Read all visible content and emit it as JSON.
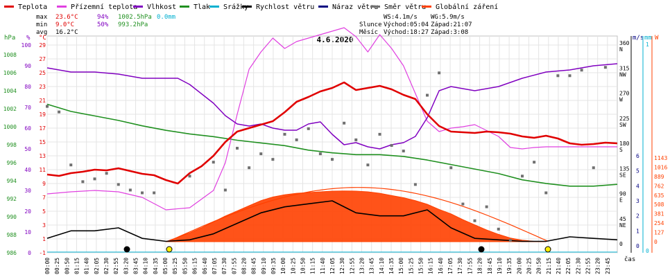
{
  "chart_data": {
    "type": "line",
    "title": "4.6.2020",
    "legend": [
      {
        "label": "Teplota",
        "color": "#e00000"
      },
      {
        "label": "Přízemní teplota",
        "color": "#e040e0"
      },
      {
        "label": "Vlhkost",
        "color": "#8000c0"
      },
      {
        "label": "Tlak",
        "color": "#209020"
      },
      {
        "label": "Srážky",
        "color": "#00b0d0"
      },
      {
        "label": "Rychlost větru",
        "color": "#000000"
      },
      {
        "label": "Náraz větru",
        "color": "#000080"
      },
      {
        "label": "Směr větru",
        "color": "#707070"
      },
      {
        "label": "Globální záření",
        "color": "#ff4000"
      }
    ],
    "stats": {
      "max": {
        "label": "max",
        "temp": "23.6°C",
        "hum": "94%",
        "press": "1002.5hPa",
        "rain": "0.0mm"
      },
      "min": {
        "label": "min",
        "temp": "9.0°C",
        "hum": "50%",
        "press": "993.2hPa"
      },
      "avg": {
        "label": "avg",
        "temp": "16.2°C"
      }
    },
    "info": {
      "ws": "WS:4.1m/s",
      "wg": "WG:5.9m/s",
      "sun_label": "Slunce",
      "sun_rise": "Východ:05:04",
      "sun_set": "Západ:21:07",
      "moon_label": "Měsíc",
      "moon_rise": "Východ:18:27",
      "moon_set": "Západ:3:08"
    },
    "axes": {
      "hpa": {
        "label": "hPa",
        "ticks": [
          "986",
          "988",
          "990",
          "992",
          "994",
          "996",
          "998",
          "1000",
          "1002",
          "1004",
          "1006",
          "1008"
        ]
      },
      "pct": {
        "label": "%",
        "ticks": [
          "0",
          "10",
          "20",
          "30",
          "40",
          "50",
          "60",
          "70",
          "80",
          "90",
          "100"
        ]
      },
      "temp": {
        "label": "°C",
        "ticks": [
          "-1",
          "1",
          "3",
          "5",
          "7",
          "9",
          "11",
          "13",
          "15",
          "17",
          "19",
          "21",
          "23",
          "25",
          "27",
          "29"
        ]
      },
      "dir": {
        "label": "",
        "ticks": [
          "0",
          "45 NE",
          "90 E",
          "135 SE",
          "180 S",
          "225 SW",
          "270 W",
          "315 NW",
          "360 N"
        ]
      },
      "ms": {
        "label": "m/s",
        "ticks": [
          "0",
          "1",
          "2",
          "3",
          "4",
          "5",
          "6"
        ]
      },
      "mm": {
        "label": "mm",
        "ticks": [
          "0",
          "1"
        ]
      },
      "w": {
        "label": "W",
        "ticks": [
          "0",
          "127",
          "254",
          "381",
          "508",
          "635",
          "762",
          "889",
          "1016",
          "1143"
        ]
      },
      "x_label": "čas",
      "x_ticks": [
        "00:00",
        "00:25",
        "00:50",
        "01:15",
        "01:40",
        "02:05",
        "02:30",
        "02:55",
        "03:20",
        "03:45",
        "04:10",
        "04:35",
        "05:00",
        "05:25",
        "05:50",
        "06:15",
        "06:40",
        "07:05",
        "07:30",
        "07:55",
        "08:20",
        "08:45",
        "09:10",
        "09:35",
        "10:00",
        "10:25",
        "10:50",
        "11:15",
        "11:40",
        "12:05",
        "12:30",
        "12:55",
        "13:20",
        "13:45",
        "14:10",
        "14:35",
        "15:00",
        "15:25",
        "15:50",
        "16:15",
        "16:40",
        "17:05",
        "17:30",
        "17:55",
        "18:20",
        "18:45",
        "19:10",
        "19:35",
        "20:00",
        "20:25",
        "20:50",
        "21:15",
        "21:40",
        "22:05",
        "22:30",
        "22:55",
        "23:20",
        "23:45"
      ]
    },
    "series": [
      {
        "name": "Teplota",
        "unit": "°C",
        "x_hours": [
          0,
          0.5,
          1,
          1.5,
          2,
          2.5,
          3,
          3.5,
          4,
          4.5,
          5,
          5.5,
          6,
          6.5,
          7,
          7.5,
          8,
          8.5,
          9,
          9.5,
          10,
          10.5,
          11,
          11.5,
          12,
          12.5,
          13,
          13.5,
          14,
          14.5,
          15,
          15.5,
          16,
          16.5,
          17,
          17.5,
          18,
          18.5,
          19,
          19.5,
          20,
          20.5,
          21,
          21.5,
          22,
          22.5,
          23,
          23.5,
          24
        ],
        "values": [
          10.3,
          10.1,
          10.5,
          10.7,
          11.0,
          10.9,
          11.2,
          10.8,
          10.4,
          10.2,
          9.5,
          9.0,
          10.5,
          11.5,
          13.0,
          15.0,
          16.5,
          17.0,
          17.5,
          18.0,
          19.3,
          20.8,
          21.5,
          22.3,
          22.8,
          23.6,
          22.5,
          22.8,
          23.1,
          22.6,
          21.8,
          21.2,
          19.0,
          17.3,
          16.5,
          16.4,
          16.3,
          16.5,
          16.4,
          16.2,
          15.8,
          15.6,
          15.9,
          15.5,
          14.8,
          14.6,
          14.7,
          14.9,
          14.8
        ]
      },
      {
        "name": "Přízemní teplota",
        "unit": "°C",
        "x_hours": [
          0,
          1,
          2,
          3,
          4,
          5,
          6,
          7,
          7.5,
          8,
          8.5,
          9,
          9.5,
          10,
          10.5,
          11,
          11.5,
          12,
          12.5,
          13,
          13.5,
          14,
          14.5,
          15,
          15.5,
          16,
          16.5,
          17,
          17.5,
          18,
          19,
          19.5,
          20,
          20.5,
          21,
          22,
          23,
          24
        ],
        "values": [
          7.5,
          7.8,
          8.0,
          7.8,
          7.0,
          5.2,
          5.5,
          8.0,
          12.0,
          19.0,
          25.5,
          28.0,
          30.0,
          28.5,
          29.5,
          30.0,
          30.5,
          31.0,
          31.5,
          30.2,
          28.0,
          30.5,
          28.5,
          26.0,
          22.0,
          18.0,
          16.5,
          17.0,
          17.2,
          17.5,
          15.8,
          14.2,
          14.0,
          14.2,
          14.3,
          14.3,
          14.3,
          14.3
        ]
      },
      {
        "name": "Vlhkost",
        "unit": "%",
        "x_hours": [
          0,
          1,
          2,
          3,
          4,
          5,
          5.5,
          6,
          7,
          7.5,
          8,
          8.5,
          9,
          9.5,
          10,
          10.5,
          11,
          11.5,
          12,
          12.5,
          13,
          13.5,
          14,
          14.5,
          15,
          15.5,
          16,
          16.5,
          17,
          17.5,
          18,
          19,
          20,
          21,
          22,
          23,
          24
        ],
        "values": [
          89,
          87,
          87,
          86,
          84,
          84,
          84,
          81,
          72,
          66,
          62,
          61,
          62,
          60,
          59,
          59,
          62,
          63,
          57,
          52,
          53,
          51,
          50,
          52,
          53,
          56,
          65,
          78,
          80,
          79,
          78,
          80,
          84,
          87,
          88,
          90,
          91
        ]
      },
      {
        "name": "Tlak",
        "unit": "hPa",
        "x_hours": [
          0,
          1,
          2,
          3,
          4,
          5,
          6,
          7,
          8,
          9,
          10,
          11,
          12,
          13,
          14,
          15,
          16,
          17,
          18,
          19,
          20,
          21,
          22,
          23,
          24
        ],
        "values": [
          1002.5,
          1001.7,
          1001.2,
          1000.7,
          1000.1,
          999.6,
          999.2,
          998.9,
          998.5,
          998.2,
          997.9,
          997.4,
          997.1,
          996.9,
          996.9,
          996.7,
          996.3,
          995.8,
          995.3,
          994.8,
          994.1,
          993.7,
          993.4,
          993.4,
          993.6
        ]
      },
      {
        "name": "Globální záření",
        "unit": "W",
        "x_hours": [
          5,
          5.5,
          6,
          6.5,
          7,
          7.5,
          8,
          8.5,
          9,
          9.5,
          10,
          10.5,
          11,
          11.5,
          12,
          12.5,
          13,
          13.5,
          14,
          14.5,
          15,
          15.5,
          16,
          16.5,
          17,
          17.5,
          18,
          18.5,
          19,
          19.5,
          20,
          20.5,
          21
        ],
        "values": [
          0,
          60,
          120,
          190,
          270,
          350,
          420,
          490,
          560,
          610,
          640,
          660,
          670,
          680,
          690,
          692,
          690,
          680,
          660,
          630,
          600,
          560,
          510,
          440,
          380,
          300,
          230,
          160,
          100,
          50,
          20,
          5,
          0
        ]
      },
      {
        "name": "Rychlost větru",
        "unit": "m/s",
        "x_hours": [
          0,
          1,
          2,
          3,
          4,
          5,
          6,
          7,
          8,
          9,
          10,
          11,
          12,
          13,
          14,
          15,
          16,
          17,
          18,
          19,
          20,
          21,
          22,
          23,
          24
        ],
        "values": [
          0.5,
          1.0,
          1.0,
          1.2,
          0.5,
          0.3,
          0.4,
          0.8,
          1.5,
          2.2,
          2.6,
          2.8,
          3.0,
          2.2,
          2.0,
          2.0,
          2.4,
          1.2,
          0.5,
          0.4,
          0.3,
          0.3,
          0.6,
          0.5,
          0.4
        ]
      },
      {
        "name": "Směr větru",
        "unit": "°",
        "x_hours": [
          0,
          0.5,
          1,
          1.5,
          2,
          2.5,
          3,
          3.5,
          4,
          4.5,
          6,
          7,
          7.5,
          8,
          8.5,
          9,
          9.5,
          10,
          10.5,
          11,
          11.5,
          12,
          12.5,
          13,
          13.5,
          14,
          14.5,
          15,
          15.5,
          16,
          16.5,
          17,
          17.5,
          18,
          18.5,
          19,
          19.5,
          20,
          20.5,
          21,
          21.5,
          22,
          22.5,
          23,
          23.5
        ],
        "values": [
          250,
          240,
          145,
          115,
          120,
          130,
          110,
          100,
          95,
          95,
          125,
          150,
          100,
          175,
          140,
          165,
          155,
          200,
          190,
          210,
          165,
          155,
          220,
          190,
          145,
          200,
          180,
          170,
          110,
          270,
          310,
          140,
          75,
          45,
          70,
          30,
          10,
          125,
          150,
          95,
          305,
          305,
          315,
          140,
          320
        ]
      }
    ]
  }
}
